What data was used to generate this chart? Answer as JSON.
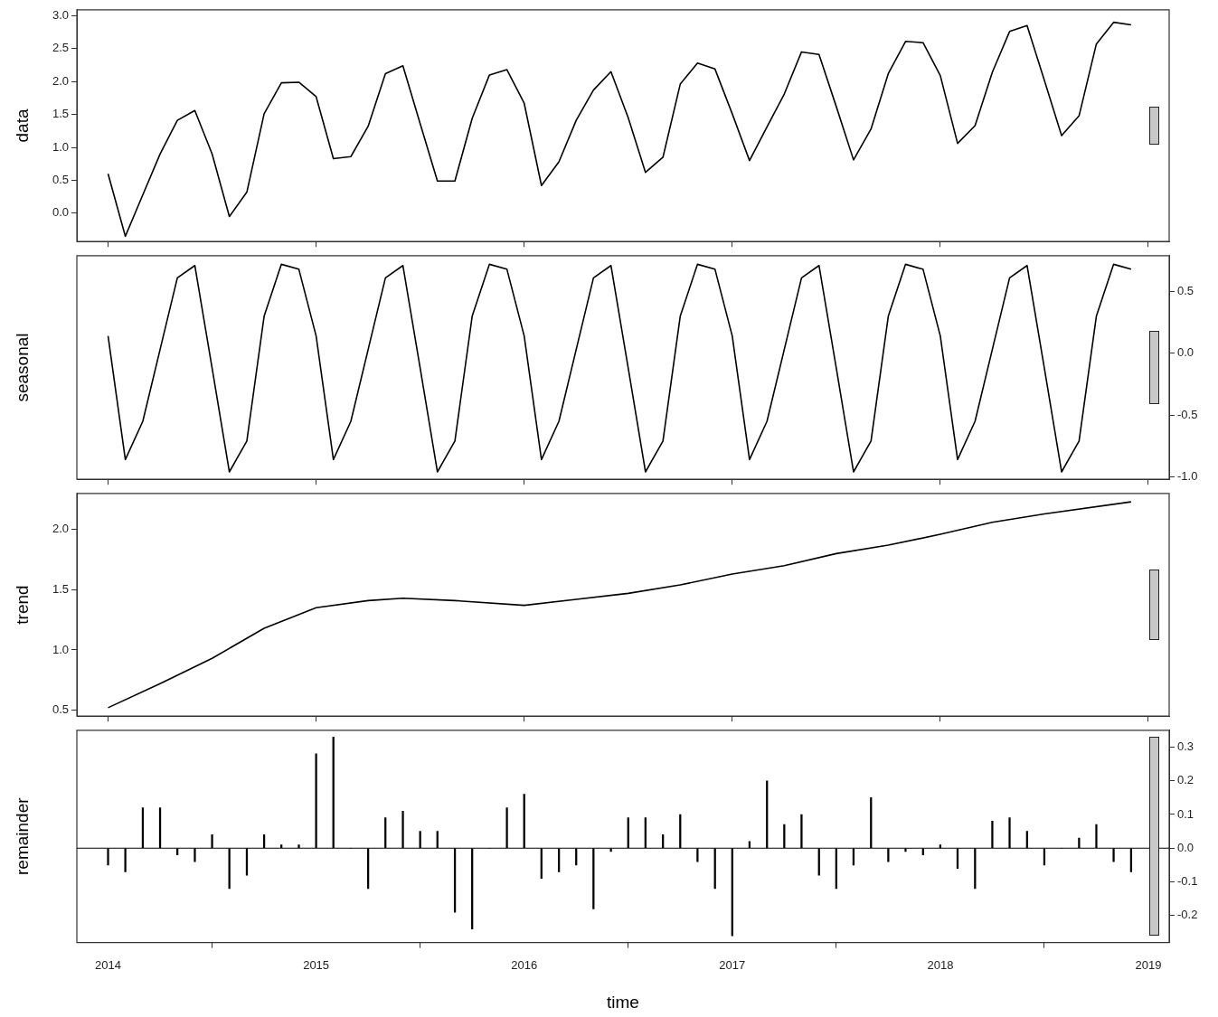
{
  "chart_data": [
    {
      "type": "line",
      "ylabel": "data",
      "tick_labels": "y",
      "x": [
        2014,
        2014.083,
        2014.167,
        2014.25,
        2014.333,
        2014.417,
        2014.5,
        2014.583,
        2014.667,
        2014.75,
        2014.833,
        2014.917,
        2015,
        2015.083,
        2015.167,
        2015.25,
        2015.333,
        2015.417,
        2015.5,
        2015.583,
        2015.667,
        2015.75,
        2015.833,
        2015.917,
        2016,
        2016.083,
        2016.167,
        2016.25,
        2016.333,
        2016.417,
        2016.5,
        2016.583,
        2016.667,
        2016.75,
        2016.833,
        2016.917,
        2017,
        2017.083,
        2017.167,
        2017.25,
        2017.333,
        2017.417,
        2017.5,
        2017.583,
        2017.667,
        2017.75,
        2017.833,
        2017.917,
        2018,
        2018.083,
        2018.167,
        2018.25,
        2018.333,
        2018.417,
        2018.5,
        2018.583,
        2018.667,
        2018.75,
        2018.833,
        2018.917
      ],
      "series": [
        {
          "color": "#000000",
          "values": [
            0.6,
            -0.35,
            0.28,
            0.9,
            1.41,
            1.56,
            0.9,
            -0.05,
            0.32,
            1.51,
            1.98,
            1.99,
            1.77,
            0.83,
            0.86,
            1.32,
            2.12,
            2.24,
            1.36,
            0.49,
            0.49,
            1.44,
            2.1,
            2.18,
            1.67,
            0.42,
            0.78,
            1.41,
            1.87,
            2.15,
            1.45,
            0.62,
            0.85,
            1.96,
            2.28,
            2.19,
            1.51,
            0.8,
            1.31,
            1.81,
            2.45,
            2.41,
            1.62,
            0.81,
            1.28,
            2.12,
            2.61,
            2.59,
            2.09,
            1.06,
            1.33,
            2.14,
            2.76,
            2.85,
            2.02,
            1.18,
            1.48,
            2.57,
            2.9,
            2.86
          ]
        }
      ],
      "xlim": [
        2013.85,
        2019.1
      ],
      "xticks": [
        2014,
        2015,
        2016,
        2017,
        2018,
        2019
      ],
      "ylim": [
        -0.43,
        3.09
      ],
      "yticks": [
        {
          "value": 0,
          "label": "0.0"
        },
        0.5,
        {
          "value": 1,
          "label": "1.0"
        },
        1.5,
        {
          "value": 2,
          "label": "2.0"
        },
        2.5,
        {
          "value": 3,
          "label": "3.0"
        }
      ]
    },
    {
      "type": "line",
      "ylabel": "seasonal",
      "tick_labels": "y",
      "x": [
        2014,
        2014.083,
        2014.167,
        2014.25,
        2014.333,
        2014.417,
        2014.5,
        2014.583,
        2014.667,
        2014.75,
        2014.833,
        2014.917,
        2015,
        2015.083,
        2015.167,
        2015.25,
        2015.333,
        2015.417,
        2015.5,
        2015.583,
        2015.667,
        2015.75,
        2015.833,
        2015.917,
        2016,
        2016.083,
        2016.167,
        2016.25,
        2016.333,
        2016.417,
        2016.5,
        2016.583,
        2016.667,
        2016.75,
        2016.833,
        2016.917,
        2017,
        2017.083,
        2017.167,
        2017.25,
        2017.333,
        2017.417,
        2017.5,
        2017.583,
        2017.667,
        2017.75,
        2017.833,
        2017.917,
        2018,
        2018.083,
        2018.167,
        2018.25,
        2018.333,
        2018.417,
        2018.5,
        2018.583,
        2018.667,
        2018.75,
        2018.833,
        2018.917
      ],
      "series": [
        {
          "color": "#000000",
          "values": [
            0.14,
            -0.86,
            -0.55,
            0.03,
            0.61,
            0.71,
            -0.12,
            -0.96,
            -0.71,
            0.3,
            0.72,
            0.68,
            0.14,
            -0.86,
            -0.55,
            0.03,
            0.61,
            0.71,
            -0.12,
            -0.96,
            -0.71,
            0.3,
            0.72,
            0.68,
            0.14,
            -0.86,
            -0.55,
            0.03,
            0.61,
            0.71,
            -0.12,
            -0.96,
            -0.71,
            0.3,
            0.72,
            0.68,
            0.14,
            -0.86,
            -0.55,
            0.03,
            0.61,
            0.71,
            -0.12,
            -0.96,
            -0.71,
            0.3,
            0.72,
            0.68,
            0.14,
            -0.86,
            -0.55,
            0.03,
            0.61,
            0.71,
            -0.12,
            -0.96,
            -0.71,
            0.3,
            0.72,
            0.68
          ]
        }
      ],
      "xlim": [
        2013.85,
        2019.1
      ],
      "xticks": [
        2014,
        2015,
        2016,
        2017,
        2018,
        2019
      ],
      "ylim": [
        -1.02,
        0.79
      ],
      "yticks": [
        {
          "value": -1,
          "label": "-1.0"
        },
        -0.5,
        {
          "value": 0,
          "label": "0.0"
        },
        0.5
      ]
    },
    {
      "type": "line",
      "ylabel": "trend",
      "tick_labels": "y",
      "series": [
        {
          "color": "#000000",
          "x": [
            2014,
            2014.25,
            2014.5,
            2014.75,
            2015,
            2015.25,
            2015.417,
            2015.667,
            2016,
            2016.25,
            2016.5,
            2016.75,
            2017,
            2017.25,
            2017.5,
            2017.75,
            2018,
            2018.25,
            2018.5,
            2018.917
          ],
          "values": [
            0.52,
            0.72,
            0.93,
            1.18,
            1.35,
            1.41,
            1.43,
            1.41,
            1.37,
            1.42,
            1.47,
            1.54,
            1.63,
            1.7,
            1.8,
            1.87,
            1.96,
            2.06,
            2.13,
            2.23
          ]
        }
      ],
      "xlim": [
        2013.85,
        2019.1
      ],
      "xticks": [
        2014,
        2015,
        2016,
        2017,
        2018,
        2019
      ],
      "ylim": [
        0.45,
        2.3
      ],
      "yticks": [
        0.5,
        {
          "value": 1,
          "label": "1.0"
        },
        1.5,
        {
          "value": 2,
          "label": "2.0"
        }
      ]
    },
    {
      "type": "bar",
      "ylabel": "remainder",
      "xlabel": "time",
      "x": [
        2014,
        2014.083,
        2014.167,
        2014.25,
        2014.333,
        2014.417,
        2014.5,
        2014.583,
        2014.667,
        2014.75,
        2014.833,
        2014.917,
        2015,
        2015.083,
        2015.167,
        2015.25,
        2015.333,
        2015.417,
        2015.5,
        2015.583,
        2015.667,
        2015.75,
        2015.833,
        2015.917,
        2016,
        2016.083,
        2016.167,
        2016.25,
        2016.333,
        2016.417,
        2016.5,
        2016.583,
        2016.667,
        2016.75,
        2016.833,
        2016.917,
        2017,
        2017.083,
        2017.167,
        2017.25,
        2017.333,
        2017.417,
        2017.5,
        2017.583,
        2017.667,
        2017.75,
        2017.833,
        2017.917,
        2018,
        2018.083,
        2018.167,
        2018.25,
        2018.333,
        2018.417,
        2018.5,
        2018.583,
        2018.667,
        2018.75,
        2018.833,
        2018.917
      ],
      "series": [
        {
          "color": "#000000",
          "values": [
            -0.05,
            -0.07,
            0.12,
            0.12,
            -0.02,
            -0.04,
            0.04,
            -0.12,
            -0.08,
            0.04,
            0.01,
            0.01,
            0.28,
            0.33,
            0,
            -0.12,
            0.09,
            0.11,
            0.05,
            0.05,
            -0.19,
            -0.24,
            0,
            0.12,
            0.16,
            -0.09,
            -0.07,
            -0.05,
            -0.18,
            -0.01,
            0.09,
            0.09,
            0.04,
            0.1,
            -0.04,
            -0.12,
            -0.26,
            0.02,
            0.2,
            0.07,
            0.1,
            -0.08,
            -0.12,
            -0.05,
            0.15,
            -0.04,
            -0.01,
            -0.02,
            0.01,
            -0.06,
            -0.12,
            0.08,
            0.09,
            0.05,
            -0.05,
            0,
            0.03,
            0.07,
            -0.04,
            -0.07
          ]
        }
      ],
      "ref_lines": [
        {
          "axis": "y",
          "value": 0
        }
      ],
      "xlim": [
        2013.85,
        2019.1
      ],
      "xticks": [
        2014,
        2015,
        2016,
        2017,
        2018,
        2019
      ],
      "ylim": [
        -0.28,
        0.35
      ],
      "yticks": [
        {
          "value": -0.2,
          "label": "-0.2"
        },
        {
          "value": -0.1,
          "label": "-0.1"
        },
        {
          "value": 0,
          "label": "0.0"
        },
        0.1,
        0.2,
        0.3
      ]
    }
  ]
}
